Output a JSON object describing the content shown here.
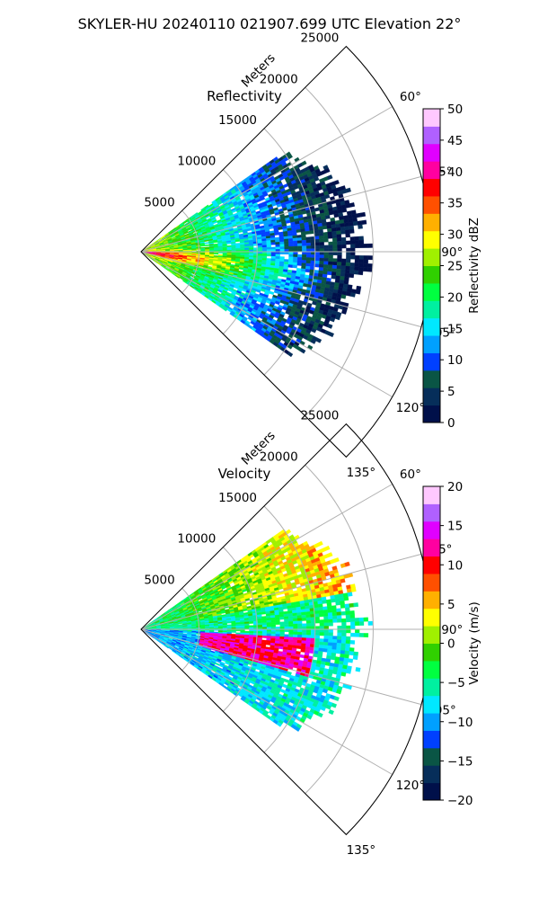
{
  "figure_title": "SKYLER-HU  20240110  021907.699 UTC Elevation 22°",
  "chart_data": [
    {
      "type": "polar-sector",
      "title": "Reflectivity",
      "radial_label": "Meters",
      "r_ticks": [
        5000,
        10000,
        15000,
        20000,
        25000
      ],
      "rlim": [
        0,
        25000
      ],
      "theta_ticks": [
        "60°",
        "75°",
        "90°",
        "105°",
        "120°",
        "135°"
      ],
      "theta_tick_values": [
        60,
        75,
        90,
        105,
        120,
        135
      ],
      "theta_range": [
        45,
        135
      ],
      "grid": true,
      "colorbar": {
        "label": "Reflectivity dBZ",
        "ticks": [
          "0",
          "5",
          "10",
          "15",
          "20",
          "25",
          "30",
          "35",
          "40",
          "45",
          "50"
        ],
        "range": [
          0,
          50
        ],
        "colors": [
          "#00104a",
          "#062e5a",
          "#0a5545",
          "#0040ff",
          "#00a0ff",
          "#00e8ff",
          "#00f0a0",
          "#00ff40",
          "#30d000",
          "#a0f000",
          "#ffff00",
          "#ffb000",
          "#ff5000",
          "#ff0000",
          "#ff00a0",
          "#e000ff",
          "#b060ff",
          "#ffc8ff"
        ],
        "position": "right"
      },
      "field_extent_m": 20000,
      "azimuth_extent_deg": [
        55,
        125
      ]
    },
    {
      "type": "polar-sector",
      "title": "Velocity",
      "radial_label": "Meters",
      "r_ticks": [
        5000,
        10000,
        15000,
        20000,
        25000
      ],
      "rlim": [
        0,
        25000
      ],
      "theta_ticks": [
        "60°",
        "75°",
        "90°",
        "105°",
        "120°",
        "135°"
      ],
      "theta_tick_values": [
        60,
        75,
        90,
        105,
        120,
        135
      ],
      "theta_range": [
        45,
        135
      ],
      "grid": true,
      "colorbar": {
        "label": "Velocity (m/s)",
        "ticks": [
          "−20",
          "−15",
          "−10",
          "−5",
          "0",
          "5",
          "10",
          "15",
          "20"
        ],
        "range": [
          -20,
          20
        ],
        "colors": [
          "#00104a",
          "#062e5a",
          "#0a5545",
          "#0040ff",
          "#00a0ff",
          "#00e8ff",
          "#00f0a0",
          "#00ff40",
          "#30d000",
          "#a0f000",
          "#ffff00",
          "#ffb000",
          "#ff5000",
          "#ff0000",
          "#ff00a0",
          "#e000ff",
          "#b060ff",
          "#ffc8ff"
        ],
        "position": "right"
      },
      "field_extent_m": 20000,
      "azimuth_extent_deg": [
        55,
        125
      ]
    }
  ]
}
